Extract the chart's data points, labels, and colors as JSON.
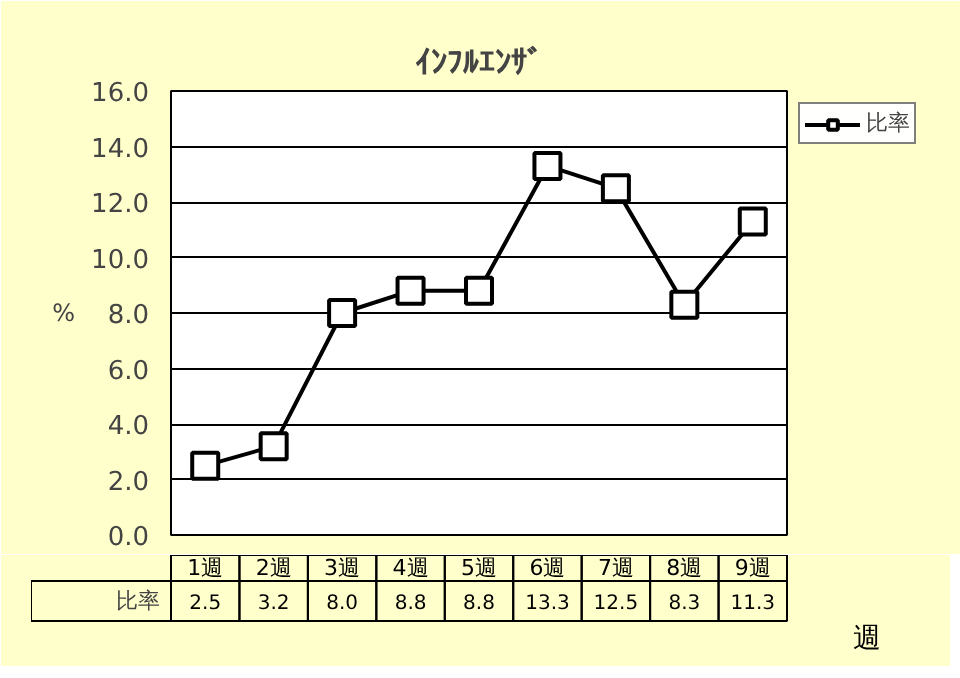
{
  "chart_data": {
    "type": "line",
    "title": "ｲﾝﾌﾙｴﾝｻﾞ",
    "ylabel": "%",
    "xlabel": "週",
    "categories": [
      "1週",
      "2週",
      "3週",
      "4週",
      "5週",
      "6週",
      "7週",
      "8週",
      "9週"
    ],
    "series": [
      {
        "name": "比率",
        "color": "#000000",
        "values": [
          2.5,
          3.2,
          8.0,
          8.8,
          8.8,
          13.3,
          12.5,
          8.3,
          11.3
        ],
        "value_labels": [
          "2.5",
          "3.2",
          "8.0",
          "8.8",
          "8.8",
          "13.3",
          "12.5",
          "8.3",
          "11.3"
        ]
      }
    ],
    "ylim": [
      0,
      16
    ],
    "yticks": [
      {
        "value": 0,
        "label": "0.0"
      },
      {
        "value": 2,
        "label": "2.0"
      },
      {
        "value": 4,
        "label": "4.0"
      },
      {
        "value": 6,
        "label": "6.0"
      },
      {
        "value": 8,
        "label": "8.0"
      },
      {
        "value": 10,
        "label": "10.0"
      },
      {
        "value": 12,
        "label": "12.0"
      },
      {
        "value": 14,
        "label": "14.0"
      },
      {
        "value": 16,
        "label": "16.0"
      }
    ],
    "grid": "y",
    "legend": "top right",
    "marker": "square",
    "line_style": "solid"
  }
}
